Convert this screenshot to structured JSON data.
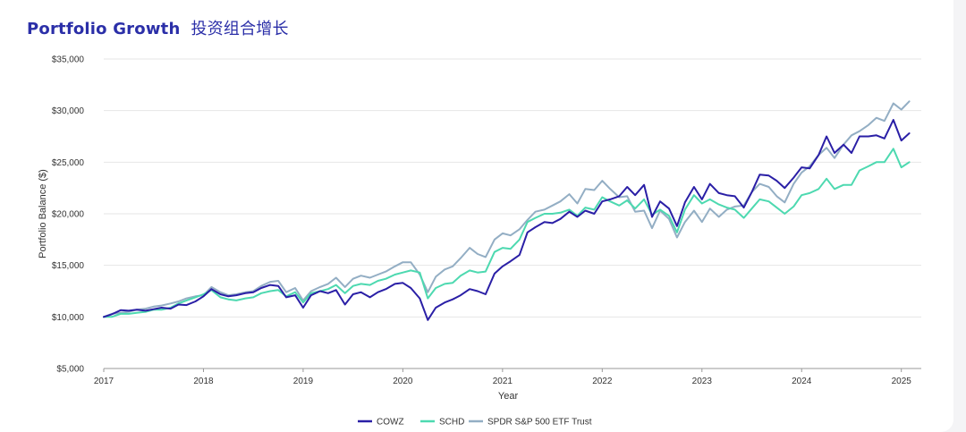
{
  "title": "Portfolio Growth",
  "title_cn": "投资组合增长",
  "chart_data": {
    "type": "line",
    "xlabel": "Year",
    "ylabel": "Portfolio Balance ($)",
    "xlim": [
      2017,
      2025.2
    ],
    "ylim": [
      5000,
      35000
    ],
    "yticks": [
      5000,
      10000,
      15000,
      20000,
      25000,
      30000,
      35000
    ],
    "ytick_labels": [
      "$5,000",
      "$10,000",
      "$15,000",
      "$20,000",
      "$25,000",
      "$30,000",
      "$35,000"
    ],
    "xticks": [
      2017,
      2018,
      2019,
      2020,
      2021,
      2022,
      2023,
      2024,
      2025
    ],
    "xtick_labels": [
      "2017",
      "2018",
      "2019",
      "2020",
      "2021",
      "2022",
      "2023",
      "2024",
      "2025"
    ],
    "grid": "horizontal",
    "legend_position": "bottom-center",
    "series": [
      {
        "name": "COWZ",
        "color": "#2a1fa6",
        "points": [
          [
            2017.0,
            10000
          ],
          [
            2017.08,
            10250
          ],
          [
            2017.17,
            10650
          ],
          [
            2017.25,
            10600
          ],
          [
            2017.33,
            10700
          ],
          [
            2017.42,
            10600
          ],
          [
            2017.5,
            10750
          ],
          [
            2017.58,
            10900
          ],
          [
            2017.67,
            10800
          ],
          [
            2017.75,
            11200
          ],
          [
            2017.83,
            11150
          ],
          [
            2017.92,
            11500
          ],
          [
            2018.0,
            12000
          ],
          [
            2018.08,
            12700
          ],
          [
            2018.17,
            12200
          ],
          [
            2018.25,
            12000
          ],
          [
            2018.33,
            12100
          ],
          [
            2018.42,
            12300
          ],
          [
            2018.5,
            12400
          ],
          [
            2018.58,
            12800
          ],
          [
            2018.67,
            13100
          ],
          [
            2018.75,
            13000
          ],
          [
            2018.83,
            11900
          ],
          [
            2018.92,
            12100
          ],
          [
            2019.0,
            10900
          ],
          [
            2019.08,
            12100
          ],
          [
            2019.17,
            12500
          ],
          [
            2019.25,
            12300
          ],
          [
            2019.33,
            12600
          ],
          [
            2019.42,
            11200
          ],
          [
            2019.5,
            12200
          ],
          [
            2019.58,
            12400
          ],
          [
            2019.67,
            11900
          ],
          [
            2019.75,
            12400
          ],
          [
            2019.83,
            12700
          ],
          [
            2019.92,
            13200
          ],
          [
            2020.0,
            13300
          ],
          [
            2020.08,
            12800
          ],
          [
            2020.17,
            11800
          ],
          [
            2020.25,
            9700
          ],
          [
            2020.33,
            10900
          ],
          [
            2020.42,
            11400
          ],
          [
            2020.5,
            11700
          ],
          [
            2020.58,
            12100
          ],
          [
            2020.67,
            12700
          ],
          [
            2020.75,
            12500
          ],
          [
            2020.83,
            12200
          ],
          [
            2020.92,
            14200
          ],
          [
            2021.0,
            14900
          ],
          [
            2021.08,
            15400
          ],
          [
            2021.17,
            16000
          ],
          [
            2021.25,
            18200
          ],
          [
            2021.33,
            18700
          ],
          [
            2021.42,
            19200
          ],
          [
            2021.5,
            19100
          ],
          [
            2021.58,
            19500
          ],
          [
            2021.67,
            20200
          ],
          [
            2021.75,
            19700
          ],
          [
            2021.83,
            20300
          ],
          [
            2021.92,
            20000
          ],
          [
            2022.0,
            21200
          ],
          [
            2022.08,
            21400
          ],
          [
            2022.17,
            21700
          ],
          [
            2022.25,
            22600
          ],
          [
            2022.33,
            21800
          ],
          [
            2022.42,
            22800
          ],
          [
            2022.5,
            19700
          ],
          [
            2022.58,
            21200
          ],
          [
            2022.67,
            20500
          ],
          [
            2022.75,
            18800
          ],
          [
            2022.83,
            21100
          ],
          [
            2022.92,
            22600
          ],
          [
            2023.0,
            21400
          ],
          [
            2023.08,
            22900
          ],
          [
            2023.17,
            22000
          ],
          [
            2023.25,
            21800
          ],
          [
            2023.33,
            21700
          ],
          [
            2023.42,
            20600
          ],
          [
            2023.5,
            22100
          ],
          [
            2023.58,
            23800
          ],
          [
            2023.67,
            23700
          ],
          [
            2023.75,
            23200
          ],
          [
            2023.83,
            22500
          ],
          [
            2023.92,
            23500
          ],
          [
            2024.0,
            24500
          ],
          [
            2024.08,
            24400
          ],
          [
            2024.17,
            25700
          ],
          [
            2024.25,
            27500
          ],
          [
            2024.33,
            25900
          ],
          [
            2024.42,
            26700
          ],
          [
            2024.5,
            25900
          ],
          [
            2024.58,
            27500
          ],
          [
            2024.67,
            27500
          ],
          [
            2024.75,
            27600
          ],
          [
            2024.83,
            27300
          ],
          [
            2024.92,
            29100
          ],
          [
            2025.0,
            27100
          ],
          [
            2025.08,
            27800
          ]
        ]
      },
      {
        "name": "SCHD",
        "color": "#4dd9b0",
        "points": [
          [
            2017.0,
            10000
          ],
          [
            2017.08,
            10000
          ],
          [
            2017.17,
            10300
          ],
          [
            2017.25,
            10300
          ],
          [
            2017.33,
            10400
          ],
          [
            2017.42,
            10500
          ],
          [
            2017.5,
            10700
          ],
          [
            2017.58,
            10700
          ],
          [
            2017.67,
            10900
          ],
          [
            2017.75,
            11300
          ],
          [
            2017.83,
            11600
          ],
          [
            2017.92,
            11900
          ],
          [
            2018.0,
            12200
          ],
          [
            2018.08,
            12600
          ],
          [
            2018.17,
            11900
          ],
          [
            2018.25,
            11700
          ],
          [
            2018.33,
            11600
          ],
          [
            2018.42,
            11800
          ],
          [
            2018.5,
            11900
          ],
          [
            2018.58,
            12300
          ],
          [
            2018.67,
            12500
          ],
          [
            2018.75,
            12600
          ],
          [
            2018.83,
            12000
          ],
          [
            2018.92,
            12400
          ],
          [
            2019.0,
            11400
          ],
          [
            2019.08,
            12300
          ],
          [
            2019.17,
            12500
          ],
          [
            2019.25,
            12700
          ],
          [
            2019.33,
            13100
          ],
          [
            2019.42,
            12300
          ],
          [
            2019.5,
            13000
          ],
          [
            2019.58,
            13200
          ],
          [
            2019.67,
            13100
          ],
          [
            2019.75,
            13500
          ],
          [
            2019.83,
            13700
          ],
          [
            2019.92,
            14100
          ],
          [
            2020.0,
            14300
          ],
          [
            2020.08,
            14500
          ],
          [
            2020.17,
            14300
          ],
          [
            2020.25,
            11800
          ],
          [
            2020.33,
            12800
          ],
          [
            2020.42,
            13200
          ],
          [
            2020.5,
            13300
          ],
          [
            2020.58,
            14000
          ],
          [
            2020.67,
            14500
          ],
          [
            2020.75,
            14300
          ],
          [
            2020.83,
            14400
          ],
          [
            2020.92,
            16300
          ],
          [
            2021.0,
            16700
          ],
          [
            2021.08,
            16600
          ],
          [
            2021.17,
            17500
          ],
          [
            2021.25,
            19200
          ],
          [
            2021.33,
            19600
          ],
          [
            2021.42,
            20000
          ],
          [
            2021.5,
            20000
          ],
          [
            2021.58,
            20100
          ],
          [
            2021.67,
            20400
          ],
          [
            2021.75,
            19800
          ],
          [
            2021.83,
            20600
          ],
          [
            2021.92,
            20400
          ],
          [
            2022.0,
            21600
          ],
          [
            2022.08,
            21200
          ],
          [
            2022.17,
            20800
          ],
          [
            2022.25,
            21300
          ],
          [
            2022.33,
            20500
          ],
          [
            2022.42,
            21400
          ],
          [
            2022.5,
            19900
          ],
          [
            2022.58,
            20400
          ],
          [
            2022.67,
            19800
          ],
          [
            2022.75,
            18200
          ],
          [
            2022.83,
            20400
          ],
          [
            2022.92,
            21800
          ],
          [
            2023.0,
            21000
          ],
          [
            2023.08,
            21400
          ],
          [
            2023.17,
            20900
          ],
          [
            2023.25,
            20600
          ],
          [
            2023.33,
            20400
          ],
          [
            2023.42,
            19600
          ],
          [
            2023.5,
            20500
          ],
          [
            2023.58,
            21400
          ],
          [
            2023.67,
            21200
          ],
          [
            2023.75,
            20600
          ],
          [
            2023.83,
            20000
          ],
          [
            2023.92,
            20700
          ],
          [
            2024.0,
            21800
          ],
          [
            2024.08,
            22000
          ],
          [
            2024.17,
            22400
          ],
          [
            2024.25,
            23400
          ],
          [
            2024.33,
            22400
          ],
          [
            2024.42,
            22800
          ],
          [
            2024.5,
            22800
          ],
          [
            2024.58,
            24200
          ],
          [
            2024.67,
            24600
          ],
          [
            2024.75,
            25000
          ],
          [
            2024.83,
            25000
          ],
          [
            2024.92,
            26300
          ],
          [
            2025.0,
            24500
          ],
          [
            2025.08,
            25000
          ]
        ]
      },
      {
        "name": "SPDR S&P 500 ETF Trust",
        "color": "#93aec4",
        "points": [
          [
            2017.0,
            10000
          ],
          [
            2017.08,
            10300
          ],
          [
            2017.17,
            10400
          ],
          [
            2017.25,
            10500
          ],
          [
            2017.33,
            10700
          ],
          [
            2017.42,
            10800
          ],
          [
            2017.5,
            11000
          ],
          [
            2017.58,
            11100
          ],
          [
            2017.67,
            11300
          ],
          [
            2017.75,
            11500
          ],
          [
            2017.83,
            11800
          ],
          [
            2017.92,
            12000
          ],
          [
            2018.0,
            12100
          ],
          [
            2018.08,
            12900
          ],
          [
            2018.17,
            12400
          ],
          [
            2018.25,
            12100
          ],
          [
            2018.33,
            12200
          ],
          [
            2018.42,
            12400
          ],
          [
            2018.5,
            12500
          ],
          [
            2018.58,
            13000
          ],
          [
            2018.67,
            13400
          ],
          [
            2018.75,
            13500
          ],
          [
            2018.83,
            12400
          ],
          [
            2018.92,
            12800
          ],
          [
            2019.0,
            11600
          ],
          [
            2019.08,
            12500
          ],
          [
            2019.17,
            12900
          ],
          [
            2019.25,
            13200
          ],
          [
            2019.33,
            13800
          ],
          [
            2019.42,
            12900
          ],
          [
            2019.5,
            13700
          ],
          [
            2019.58,
            14000
          ],
          [
            2019.67,
            13800
          ],
          [
            2019.75,
            14100
          ],
          [
            2019.83,
            14400
          ],
          [
            2019.92,
            14900
          ],
          [
            2020.0,
            15300
          ],
          [
            2020.08,
            15300
          ],
          [
            2020.17,
            14100
          ],
          [
            2020.25,
            12400
          ],
          [
            2020.33,
            13900
          ],
          [
            2020.42,
            14600
          ],
          [
            2020.5,
            14900
          ],
          [
            2020.58,
            15700
          ],
          [
            2020.67,
            16700
          ],
          [
            2020.75,
            16100
          ],
          [
            2020.83,
            15800
          ],
          [
            2020.92,
            17500
          ],
          [
            2021.0,
            18100
          ],
          [
            2021.08,
            17900
          ],
          [
            2021.17,
            18500
          ],
          [
            2021.25,
            19400
          ],
          [
            2021.33,
            20200
          ],
          [
            2021.42,
            20400
          ],
          [
            2021.5,
            20800
          ],
          [
            2021.58,
            21200
          ],
          [
            2021.67,
            21900
          ],
          [
            2021.75,
            21000
          ],
          [
            2021.83,
            22400
          ],
          [
            2021.92,
            22300
          ],
          [
            2022.0,
            23200
          ],
          [
            2022.08,
            22400
          ],
          [
            2022.17,
            21600
          ],
          [
            2022.25,
            21700
          ],
          [
            2022.33,
            20200
          ],
          [
            2022.42,
            20300
          ],
          [
            2022.5,
            18600
          ],
          [
            2022.58,
            20300
          ],
          [
            2022.67,
            19500
          ],
          [
            2022.75,
            17700
          ],
          [
            2022.83,
            19200
          ],
          [
            2022.92,
            20300
          ],
          [
            2023.0,
            19200
          ],
          [
            2023.08,
            20500
          ],
          [
            2023.17,
            19700
          ],
          [
            2023.25,
            20400
          ],
          [
            2023.33,
            20700
          ],
          [
            2023.42,
            20800
          ],
          [
            2023.5,
            22100
          ],
          [
            2023.58,
            22900
          ],
          [
            2023.67,
            22600
          ],
          [
            2023.75,
            21700
          ],
          [
            2023.83,
            21100
          ],
          [
            2023.92,
            22900
          ],
          [
            2024.0,
            24000
          ],
          [
            2024.08,
            24600
          ],
          [
            2024.17,
            25700
          ],
          [
            2024.25,
            26400
          ],
          [
            2024.33,
            25400
          ],
          [
            2024.42,
            26700
          ],
          [
            2024.5,
            27600
          ],
          [
            2024.58,
            28000
          ],
          [
            2024.67,
            28600
          ],
          [
            2024.75,
            29300
          ],
          [
            2024.83,
            29000
          ],
          [
            2024.92,
            30700
          ],
          [
            2025.0,
            30100
          ],
          [
            2025.08,
            30900
          ]
        ]
      }
    ]
  }
}
